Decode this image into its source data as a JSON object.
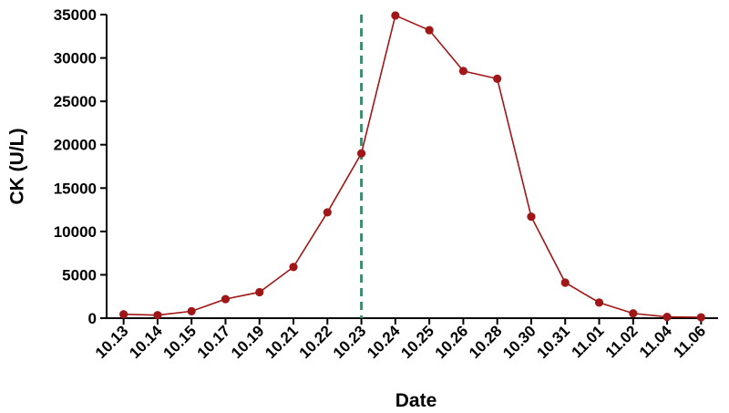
{
  "chart_data": {
    "type": "line",
    "title": "",
    "xlabel": "Date",
    "ylabel": "CK (U/L)",
    "categories": [
      "10.13",
      "10.14",
      "10.15",
      "10.17",
      "10.19",
      "10.21",
      "10.22",
      "10.23",
      "10.24",
      "10.25",
      "10.26",
      "10.28",
      "10.30",
      "10.31",
      "11.01",
      "11.02",
      "11.04",
      "11.06"
    ],
    "series": [
      {
        "values": [
          450,
          350,
          800,
          2200,
          3000,
          5900,
          12200,
          19000,
          34900,
          33200,
          28500,
          27600,
          11700,
          4100,
          1800,
          550,
          150,
          100
        ]
      }
    ],
    "ylim": [
      0,
      35000
    ],
    "yticks": [
      0,
      5000,
      10000,
      15000,
      20000,
      25000,
      30000,
      35000
    ],
    "reference_line": {
      "category": "10.23",
      "style": "dashed",
      "color": "#1a9e6e"
    },
    "colors": {
      "series": "#a11616",
      "axis": "#000000"
    },
    "grid": false,
    "legend": "none"
  }
}
